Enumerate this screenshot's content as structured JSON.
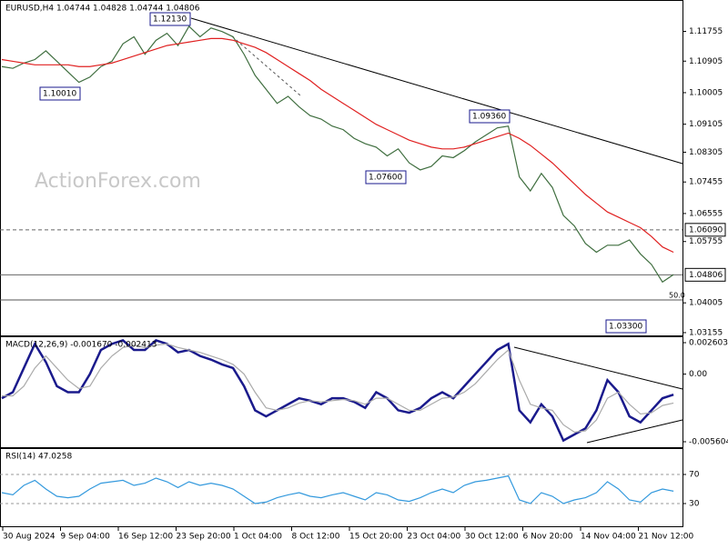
{
  "chart_data": [
    {
      "type": "line",
      "title": "EURUSD,H4  1.04744 1.04828 1.04744 1.04806",
      "watermark": "ActionForex.com",
      "ylim": [
        1.0305,
        1.1265
      ],
      "yticks": [
        1.11755,
        1.10905,
        1.10005,
        1.09105,
        1.08305,
        1.07455,
        1.06555,
        1.05755,
        1.04005,
        1.03155
      ],
      "time_labels": [
        "30 Aug 2024",
        "9 Sep 04:00",
        "16 Sep 12:00",
        "23 Sep 20:00",
        "1 Oct 04:00",
        "8 Oct 12:00",
        "15 Oct 20:00",
        "23 Oct 04:00",
        "30 Oct 12:00",
        "6 Nov 20:00",
        "14 Nov 04:00",
        "21 Nov 12:00"
      ],
      "levels": [
        {
          "value": 1.0609,
          "label": "1.06090"
        },
        {
          "value": 1.04806,
          "label": "1.04806"
        }
      ],
      "annotations": [
        "1.12130",
        "1.10010",
        "1.07600",
        "1.09360",
        "1.03300",
        "50.0"
      ],
      "series": [
        {
          "name": "EURUSD",
          "color": "#3f6e3f",
          "values": [
            1.1075,
            1.107,
            1.1085,
            1.1095,
            1.112,
            1.109,
            1.106,
            1.103,
            1.1045,
            1.1075,
            1.109,
            1.114,
            1.116,
            1.111,
            1.115,
            1.117,
            1.1135,
            1.119,
            1.116,
            1.1185,
            1.1175,
            1.116,
            1.111,
            1.105,
            1.101,
            1.097,
            1.099,
            1.096,
            1.0935,
            1.0925,
            1.0905,
            1.0895,
            1.087,
            1.0855,
            1.0845,
            1.082,
            1.084,
            1.08,
            1.078,
            1.079,
            1.082,
            1.0815,
            1.0835,
            1.086,
            1.088,
            1.09,
            1.0905,
            1.076,
            1.072,
            1.077,
            1.073,
            1.065,
            1.062,
            1.057,
            1.0545,
            1.0565,
            1.0565,
            1.058,
            1.054,
            1.051,
            1.046,
            1.0481
          ]
        },
        {
          "name": "MA",
          "color": "#e02020",
          "values": [
            1.1095,
            1.109,
            1.1085,
            1.108,
            1.108,
            1.108,
            1.108,
            1.1075,
            1.1075,
            1.108,
            1.1085,
            1.1095,
            1.1105,
            1.1115,
            1.1125,
            1.1135,
            1.114,
            1.1145,
            1.115,
            1.1155,
            1.1155,
            1.115,
            1.114,
            1.113,
            1.1115,
            1.1095,
            1.1075,
            1.1055,
            1.1035,
            1.101,
            1.099,
            1.097,
            1.095,
            1.093,
            1.091,
            1.0895,
            1.088,
            1.0865,
            1.0855,
            1.0845,
            1.084,
            1.084,
            1.0845,
            1.0855,
            1.0865,
            1.0875,
            1.0885,
            1.087,
            1.085,
            1.0825,
            1.08,
            1.077,
            1.074,
            1.071,
            1.0685,
            1.066,
            1.0645,
            1.063,
            1.0615,
            1.059,
            1.056,
            1.0545
          ]
        }
      ]
    },
    {
      "type": "line",
      "title": "MACD(12,26,9) -0.001670 -0.002413",
      "ylim": [
        -0.00613,
        0.00313
      ],
      "yticks": [
        0.002603,
        {
          "value": 0,
          "label": "0.00"
        },
        -0.005604
      ],
      "series": [
        {
          "name": "MACD",
          "color": "#1a1a8c",
          "values": [
            -0.002,
            -0.0015,
            0.0005,
            0.0025,
            0.001,
            -0.001,
            -0.0015,
            -0.0015,
            0.0,
            0.002,
            0.0025,
            0.0028,
            0.002,
            0.002,
            0.0028,
            0.0025,
            0.0018,
            0.002,
            0.0015,
            0.0012,
            0.0008,
            0.0005,
            -0.001,
            -0.003,
            -0.0035,
            -0.003,
            -0.0025,
            -0.002,
            -0.0022,
            -0.0025,
            -0.002,
            -0.002,
            -0.0023,
            -0.0028,
            -0.0015,
            -0.002,
            -0.003,
            -0.0032,
            -0.0028,
            -0.002,
            -0.0015,
            -0.002,
            -0.001,
            0.0,
            0.001,
            0.002,
            0.0025,
            -0.003,
            -0.004,
            -0.0025,
            -0.0035,
            -0.0055,
            -0.005,
            -0.0045,
            -0.003,
            -0.0005,
            -0.0015,
            -0.0035,
            -0.004,
            -0.003,
            -0.002,
            -0.0017
          ]
        },
        {
          "name": "Signal",
          "color": "#aaaaaa",
          "values": [
            -0.0018,
            -0.0018,
            -0.001,
            0.0005,
            0.0015,
            0.0005,
            -0.0005,
            -0.0012,
            -0.001,
            0.0005,
            0.0015,
            0.0022,
            0.0024,
            0.0022,
            0.0024,
            0.0025,
            0.0022,
            0.002,
            0.0018,
            0.0015,
            0.0012,
            0.0008,
            0.0,
            -0.0015,
            -0.0028,
            -0.003,
            -0.0028,
            -0.0024,
            -0.0022,
            -0.0023,
            -0.0022,
            -0.0021,
            -0.0022,
            -0.0025,
            -0.002,
            -0.002,
            -0.0025,
            -0.003,
            -0.003,
            -0.0025,
            -0.002,
            -0.0019,
            -0.0015,
            -0.0008,
            0.0002,
            0.0012,
            0.002,
            -0.0005,
            -0.0025,
            -0.0028,
            -0.003,
            -0.0042,
            -0.0048,
            -0.0047,
            -0.0038,
            -0.002,
            -0.0015,
            -0.0025,
            -0.0033,
            -0.0032,
            -0.0026,
            -0.0024
          ]
        }
      ]
    },
    {
      "type": "line",
      "title": "RSI(14) 47.0258",
      "ylim": [
        -2.5,
        106.25
      ],
      "yticks": [
        70,
        30
      ],
      "series": [
        {
          "name": "RSI",
          "color": "#3399dd",
          "values": [
            45,
            42,
            55,
            62,
            50,
            40,
            38,
            40,
            50,
            58,
            60,
            62,
            55,
            58,
            65,
            60,
            52,
            60,
            55,
            58,
            55,
            50,
            40,
            30,
            32,
            38,
            42,
            45,
            40,
            38,
            42,
            45,
            40,
            35,
            45,
            42,
            35,
            33,
            38,
            45,
            50,
            45,
            55,
            60,
            62,
            65,
            68,
            35,
            30,
            45,
            40,
            30,
            35,
            38,
            45,
            60,
            50,
            35,
            32,
            45,
            50,
            47.0258
          ]
        }
      ]
    }
  ]
}
